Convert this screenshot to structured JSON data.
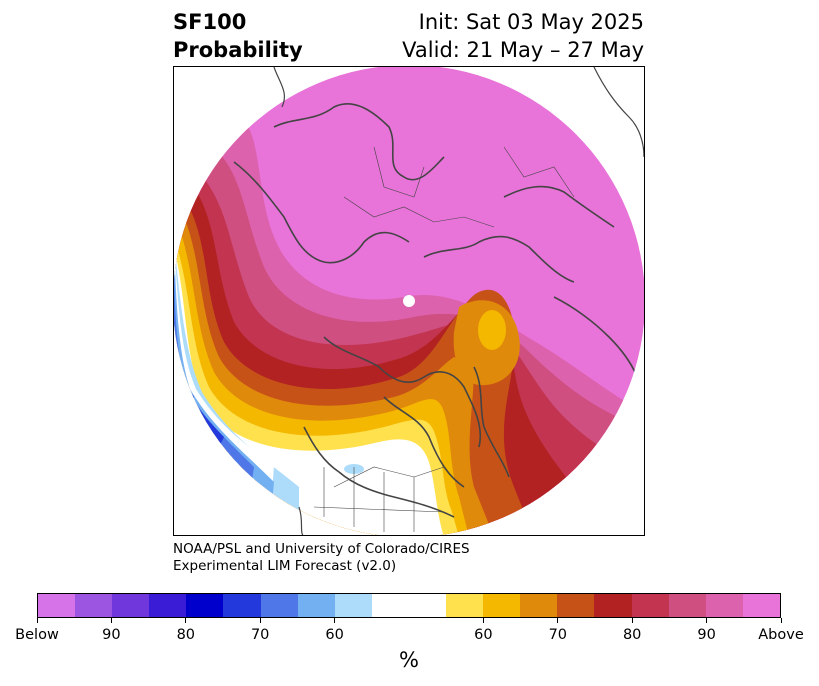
{
  "title": {
    "left_line1": "SF100",
    "left_line2": "Probability",
    "right_line1": "Init: Sat 03 May 2025",
    "right_line2": "Valid: 21 May – 27 May"
  },
  "credit": {
    "line1": "NOAA/PSL and University of Colorado/CIRES",
    "line2": "Experimental LIM Forecast (v2.0)"
  },
  "colorbar": {
    "unit": "%",
    "colors_below": [
      "#d673e8",
      "#9c55e0",
      "#6f37dc",
      "#3a1bd6",
      "#0000cc",
      "#2339db",
      "#4f77e8",
      "#73b0f2",
      "#addcfa"
    ],
    "neutral_color": "#ffffff",
    "colors_above": [
      "#ffe14d",
      "#f5b800",
      "#e08a0c",
      "#c75218",
      "#b22222",
      "#c2344f",
      "#cf4f80",
      "#dd62ad",
      "#e873d9"
    ],
    "labels": [
      "Below",
      "90",
      "80",
      "70",
      "60",
      "60",
      "70",
      "80",
      "90",
      "Above"
    ]
  },
  "map": {
    "projection": "north-polar-stereographic",
    "palette": {
      "magenta": "#e873d9",
      "pink": "#dd62ad",
      "rose": "#cf4f80",
      "crimson": "#c2344f",
      "red": "#b22222",
      "rust": "#c75218",
      "orange": "#e08a0c",
      "amber": "#f5b800",
      "yellow": "#ffe14d",
      "pale_blue": "#addcfa",
      "sky_blue": "#73b0f2",
      "mid_blue": "#4f77e8",
      "royal_blue": "#2339db",
      "deep_blue": "#0000cc",
      "coast": "#444444"
    }
  }
}
